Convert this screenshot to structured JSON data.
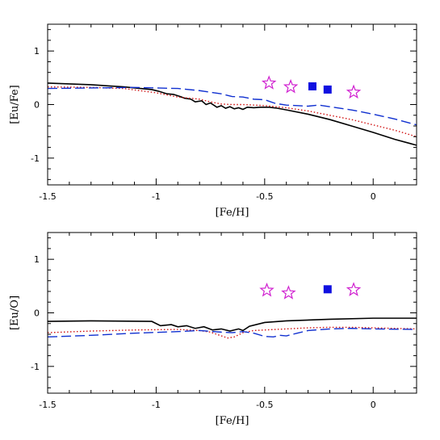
{
  "chart_data": [
    {
      "type": "line",
      "xlabel": "[Fe/H]",
      "ylabel": "[Eu/Fe]",
      "xlim": [
        -1.5,
        0.2
      ],
      "ylim": [
        -1.5,
        1.5
      ],
      "xticks": [
        -1.5,
        -1,
        -0.5,
        0
      ],
      "xtick_labels": [
        "-1.5",
        "-1",
        "-0.5",
        "0"
      ],
      "yticks": [
        -1,
        0,
        1
      ],
      "ytick_labels": [
        "-1",
        "0",
        "1"
      ],
      "grid": false,
      "series": [
        {
          "style": "solid",
          "color": "#000000",
          "x": [
            -1.5,
            -1.3,
            -1.15,
            -1.02,
            -0.99,
            -0.95,
            -0.92,
            -0.89,
            -0.87,
            -0.84,
            -0.82,
            -0.79,
            -0.77,
            -0.75,
            -0.72,
            -0.7,
            -0.68,
            -0.66,
            -0.64,
            -0.62,
            -0.6,
            -0.58,
            -0.55,
            -0.52,
            -0.48,
            -0.44,
            -0.4,
            -0.3,
            -0.2,
            -0.1,
            0.0,
            0.1,
            0.2
          ],
          "y": [
            0.4,
            0.37,
            0.33,
            0.28,
            0.25,
            0.2,
            0.19,
            0.15,
            0.12,
            0.1,
            0.05,
            0.07,
            0.0,
            0.03,
            -0.05,
            -0.02,
            -0.07,
            -0.04,
            -0.08,
            -0.06,
            -0.09,
            -0.05,
            -0.06,
            -0.05,
            -0.05,
            -0.07,
            -0.1,
            -0.18,
            -0.28,
            -0.4,
            -0.52,
            -0.65,
            -0.76
          ]
        },
        {
          "style": "dotted",
          "color": "#d01010",
          "x": [
            -1.5,
            -1.3,
            -1.15,
            -1.0,
            -0.9,
            -0.8,
            -0.75,
            -0.7,
            -0.65,
            -0.6,
            -0.55,
            -0.5,
            -0.45,
            -0.4,
            -0.3,
            -0.2,
            -0.1,
            0.0,
            0.1,
            0.2
          ],
          "y": [
            0.33,
            0.32,
            0.3,
            0.22,
            0.14,
            0.1,
            0.05,
            0.01,
            0.0,
            0.0,
            -0.01,
            -0.02,
            -0.04,
            -0.06,
            -0.12,
            -0.2,
            -0.28,
            -0.38,
            -0.48,
            -0.6
          ]
        },
        {
          "style": "dashed",
          "color": "#1030d0",
          "x": [
            -1.5,
            -1.3,
            -1.1,
            -1.0,
            -0.9,
            -0.8,
            -0.7,
            -0.65,
            -0.6,
            -0.55,
            -0.5,
            -0.45,
            -0.4,
            -0.35,
            -0.3,
            -0.25,
            -0.2,
            -0.15,
            -0.1,
            0.0,
            0.1,
            0.2
          ],
          "y": [
            0.3,
            0.31,
            0.32,
            0.31,
            0.3,
            0.26,
            0.2,
            0.15,
            0.14,
            0.1,
            0.09,
            0.02,
            -0.01,
            -0.02,
            -0.03,
            -0.01,
            -0.04,
            -0.07,
            -0.1,
            -0.18,
            -0.27,
            -0.38
          ]
        }
      ],
      "points": [
        {
          "marker": "star",
          "color": "#d020d0",
          "x": -0.48,
          "y": 0.4
        },
        {
          "marker": "star",
          "color": "#d020d0",
          "x": -0.38,
          "y": 0.33
        },
        {
          "marker": "star",
          "color": "#d020d0",
          "x": -0.09,
          "y": 0.23
        },
        {
          "marker": "square",
          "color": "#1010e0",
          "x": -0.28,
          "y": 0.34
        },
        {
          "marker": "square",
          "color": "#1010e0",
          "x": -0.21,
          "y": 0.28
        }
      ]
    },
    {
      "type": "line",
      "xlabel": "[Fe/H]",
      "ylabel": "[Eu/O]",
      "xlim": [
        -1.5,
        0.2
      ],
      "ylim": [
        -1.5,
        1.5
      ],
      "xticks": [
        -1.5,
        -1,
        -0.5,
        0
      ],
      "xtick_labels": [
        "-1.5",
        "-1",
        "-0.5",
        "0"
      ],
      "yticks": [
        -1,
        0,
        1
      ],
      "ytick_labels": [
        "-1",
        "0",
        "1"
      ],
      "grid": false,
      "series": [
        {
          "style": "solid",
          "color": "#000000",
          "x": [
            -1.5,
            -1.3,
            -1.02,
            -0.98,
            -0.93,
            -0.9,
            -0.86,
            -0.82,
            -0.78,
            -0.74,
            -0.7,
            -0.66,
            -0.62,
            -0.6,
            -0.57,
            -0.5,
            -0.4,
            -0.2,
            0.0,
            0.2
          ],
          "y": [
            -0.16,
            -0.15,
            -0.16,
            -0.24,
            -0.22,
            -0.26,
            -0.24,
            -0.29,
            -0.26,
            -0.32,
            -0.3,
            -0.34,
            -0.3,
            -0.33,
            -0.25,
            -0.18,
            -0.15,
            -0.12,
            -0.1,
            -0.1
          ]
        },
        {
          "style": "dotted",
          "color": "#d01010",
          "x": [
            -1.5,
            -1.3,
            -1.1,
            -0.9,
            -0.8,
            -0.75,
            -0.7,
            -0.67,
            -0.64,
            -0.6,
            -0.55,
            -0.5,
            -0.4,
            -0.3,
            -0.2,
            -0.1,
            0.0,
            0.2
          ],
          "y": [
            -0.37,
            -0.34,
            -0.32,
            -0.31,
            -0.33,
            -0.36,
            -0.43,
            -0.47,
            -0.45,
            -0.37,
            -0.33,
            -0.32,
            -0.3,
            -0.28,
            -0.27,
            -0.27,
            -0.28,
            -0.3
          ]
        },
        {
          "style": "dashed",
          "color": "#1030d0",
          "x": [
            -1.5,
            -1.3,
            -1.1,
            -0.9,
            -0.8,
            -0.7,
            -0.65,
            -0.6,
            -0.55,
            -0.5,
            -0.46,
            -0.43,
            -0.4,
            -0.35,
            -0.3,
            -0.2,
            -0.1,
            0.0,
            0.2
          ],
          "y": [
            -0.45,
            -0.42,
            -0.38,
            -0.35,
            -0.33,
            -0.36,
            -0.37,
            -0.35,
            -0.38,
            -0.44,
            -0.45,
            -0.42,
            -0.43,
            -0.38,
            -0.33,
            -0.3,
            -0.29,
            -0.3,
            -0.31
          ]
        }
      ],
      "points": [
        {
          "marker": "star",
          "color": "#d020d0",
          "x": -0.49,
          "y": 0.42
        },
        {
          "marker": "star",
          "color": "#d020d0",
          "x": -0.39,
          "y": 0.37
        },
        {
          "marker": "star",
          "color": "#d020d0",
          "x": -0.09,
          "y": 0.43
        },
        {
          "marker": "square",
          "color": "#1010e0",
          "x": -0.21,
          "y": 0.44
        }
      ]
    }
  ]
}
